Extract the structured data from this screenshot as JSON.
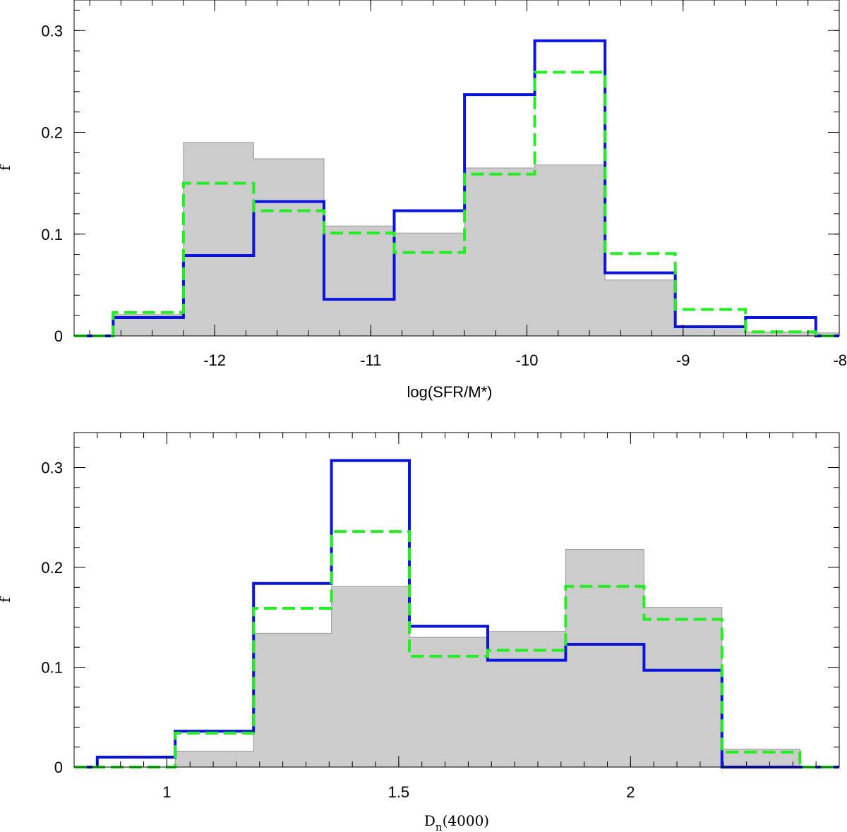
{
  "chart_data": [
    {
      "type": "histogram-step",
      "xlabel": "log(SFR/M*)",
      "ylabel": "f",
      "xlim": [
        -12.9,
        -8.0
      ],
      "ylim": [
        0,
        0.33
      ],
      "x_ticks": [
        -12,
        -11,
        -10,
        -9,
        -8
      ],
      "x_tick_labels": [
        "-12",
        "-11",
        "-10",
        "-9",
        "-8"
      ],
      "x_minor_step": 0.2,
      "y_ticks": [
        0,
        0.1,
        0.2,
        0.3
      ],
      "y_tick_labels": [
        "0",
        "0.1",
        "0.2",
        "0.3"
      ],
      "y_minor_step": 0.02,
      "bin_edges": [
        -12.9,
        -12.65,
        -12.2,
        -11.75,
        -11.3,
        -10.85,
        -10.4,
        -9.95,
        -9.5,
        -9.05,
        -8.6,
        -8.15,
        -8.0
      ],
      "series": [
        {
          "name": "gray",
          "style": "filled",
          "color": "#cccccc",
          "edge": "#999999",
          "values": [
            0,
            0.021,
            0.19,
            0.174,
            0.108,
            0.101,
            0.165,
            0.168,
            0.055,
            0.01,
            0.004,
            0.003
          ]
        },
        {
          "name": "blue",
          "style": "solid",
          "color": "#0a14dc",
          "values": [
            0,
            0.018,
            0.079,
            0.132,
            0.036,
            0.123,
            0.237,
            0.29,
            0.062,
            0.009,
            0.018,
            0
          ]
        },
        {
          "name": "green",
          "style": "dashed",
          "color": "#22ee22",
          "values": [
            0,
            0.023,
            0.15,
            0.123,
            0.101,
            0.082,
            0.159,
            0.259,
            0.081,
            0.026,
            0.004,
            0
          ]
        }
      ]
    },
    {
      "type": "histogram-step",
      "xlabel": "D_n(4000)",
      "xlabel_main": "D",
      "xlabel_sub": "n",
      "xlabel_rest": "(4000)",
      "ylabel": "f",
      "xlim": [
        0.8,
        2.45
      ],
      "ylim": [
        0,
        0.335
      ],
      "x_ticks": [
        1,
        1.5,
        2
      ],
      "x_tick_labels": [
        "1",
        "1.5",
        "2"
      ],
      "x_minor_step": 0.05,
      "y_ticks": [
        0,
        0.1,
        0.2,
        0.3
      ],
      "y_tick_labels": [
        "0",
        "0.1",
        "0.2",
        "0.3"
      ],
      "y_minor_step": 0.02,
      "bin_edges": [
        0.8,
        0.85,
        1.018,
        1.187,
        1.355,
        1.523,
        1.692,
        1.86,
        2.029,
        2.197,
        2.365,
        2.45
      ],
      "series": [
        {
          "name": "gray",
          "style": "filled",
          "color": "#cccccc",
          "edge": "#999999",
          "values": [
            0,
            0,
            0.016,
            0.134,
            0.181,
            0.13,
            0.136,
            0.218,
            0.16,
            0.018,
            0
          ]
        },
        {
          "name": "blue",
          "style": "solid",
          "color": "#0a14dc",
          "values": [
            0,
            0.01,
            0.036,
            0.184,
            0.307,
            0.141,
            0.107,
            0.123,
            0.097,
            0,
            0
          ]
        },
        {
          "name": "green",
          "style": "dashed",
          "color": "#22ee22",
          "values": [
            0,
            0,
            0.034,
            0.159,
            0.236,
            0.111,
            0.117,
            0.181,
            0.148,
            0.015,
            0
          ]
        }
      ]
    }
  ]
}
